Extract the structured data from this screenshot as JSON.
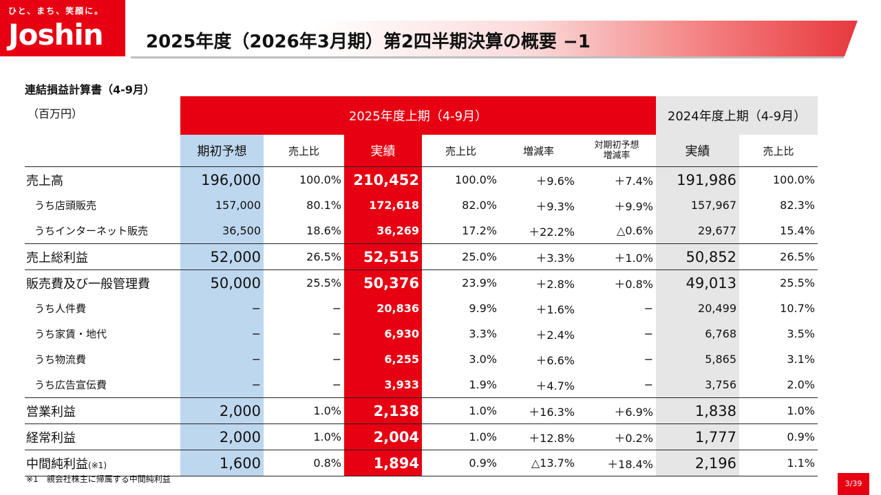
{
  "logo": {
    "tagline": "ひと、まち、笑顔に。",
    "brand": "Joshin"
  },
  "header": {
    "title": "2025年度（2026年3月期）第2四半期決算の概要 −1"
  },
  "section_title": "連結損益計算書（4-9月）",
  "table": {
    "unit": "（百万円）",
    "group_2025": "2025年度上期（4-9月）",
    "group_2024": "2024年度上期（4-9月）",
    "columns": {
      "forecast": "期初予想",
      "forecast_ratio": "売上比",
      "actual": "実績",
      "actual_ratio": "売上比",
      "growth": "増減率",
      "vs_forecast_1": "対期初予想",
      "vs_forecast_2": "増減率",
      "prev_actual": "実績",
      "prev_ratio": "売上比"
    },
    "rows": [
      {
        "label": "売上高",
        "forecast": "196,000",
        "forecast_ratio": "100.0%",
        "actual": "210,452",
        "actual_ratio": "100.0%",
        "growth": "＋9.6%",
        "vs_forecast": "＋7.4%",
        "prev_actual": "191,986",
        "prev_ratio": "100.0%"
      },
      {
        "label": "うち店頭販売",
        "forecast": "157,000",
        "forecast_ratio": "80.1%",
        "actual": "172,618",
        "actual_ratio": "82.0%",
        "growth": "＋9.3%",
        "vs_forecast": "＋9.9%",
        "prev_actual": "157,967",
        "prev_ratio": "82.3%"
      },
      {
        "label": "うちインターネット販売",
        "forecast": "36,500",
        "forecast_ratio": "18.6%",
        "actual": "36,269",
        "actual_ratio": "17.2%",
        "growth": "＋22.2%",
        "vs_forecast": "△0.6%",
        "prev_actual": "29,677",
        "prev_ratio": "15.4%"
      },
      {
        "label": "売上総利益",
        "forecast": "52,000",
        "forecast_ratio": "26.5%",
        "actual": "52,515",
        "actual_ratio": "25.0%",
        "growth": "＋3.3%",
        "vs_forecast": "＋1.0%",
        "prev_actual": "50,852",
        "prev_ratio": "26.5%"
      },
      {
        "label": "販売費及び一般管理費",
        "forecast": "50,000",
        "forecast_ratio": "25.5%",
        "actual": "50,376",
        "actual_ratio": "23.9%",
        "growth": "＋2.8%",
        "vs_forecast": "＋0.8%",
        "prev_actual": "49,013",
        "prev_ratio": "25.5%"
      },
      {
        "label": "うち人件費",
        "forecast": "−",
        "forecast_ratio": "−",
        "actual": "20,836",
        "actual_ratio": "9.9%",
        "growth": "＋1.6%",
        "vs_forecast": "−",
        "prev_actual": "20,499",
        "prev_ratio": "10.7%"
      },
      {
        "label": "うち家賃・地代",
        "forecast": "−",
        "forecast_ratio": "−",
        "actual": "6,930",
        "actual_ratio": "3.3%",
        "growth": "＋2.4%",
        "vs_forecast": "−",
        "prev_actual": "6,768",
        "prev_ratio": "3.5%"
      },
      {
        "label": "うち物流費",
        "forecast": "−",
        "forecast_ratio": "−",
        "actual": "6,255",
        "actual_ratio": "3.0%",
        "growth": "＋6.6%",
        "vs_forecast": "−",
        "prev_actual": "5,865",
        "prev_ratio": "3.1%"
      },
      {
        "label": "うち広告宣伝費",
        "forecast": "−",
        "forecast_ratio": "−",
        "actual": "3,933",
        "actual_ratio": "1.9%",
        "growth": "＋4.7%",
        "vs_forecast": "−",
        "prev_actual": "3,756",
        "prev_ratio": "2.0%"
      },
      {
        "label": "営業利益",
        "forecast": "2,000",
        "forecast_ratio": "1.0%",
        "actual": "2,138",
        "actual_ratio": "1.0%",
        "growth": "＋16.3%",
        "vs_forecast": "＋6.9%",
        "prev_actual": "1,838",
        "prev_ratio": "1.0%"
      },
      {
        "label": "経常利益",
        "forecast": "2,000",
        "forecast_ratio": "1.0%",
        "actual": "2,004",
        "actual_ratio": "1.0%",
        "growth": "＋12.8%",
        "vs_forecast": "＋0.2%",
        "prev_actual": "1,777",
        "prev_ratio": "0.9%"
      },
      {
        "label": "中間純利益",
        "label_note": "(※1)",
        "forecast": "1,600",
        "forecast_ratio": "0.8%",
        "actual": "1,894",
        "actual_ratio": "0.9%",
        "growth": "△13.7%",
        "vs_forecast": "＋18.4%",
        "prev_actual": "2,196",
        "prev_ratio": "1.1%"
      }
    ]
  },
  "footnote": "※1　親会社株主に帰属する中間純利益",
  "page_number": "3/39"
}
